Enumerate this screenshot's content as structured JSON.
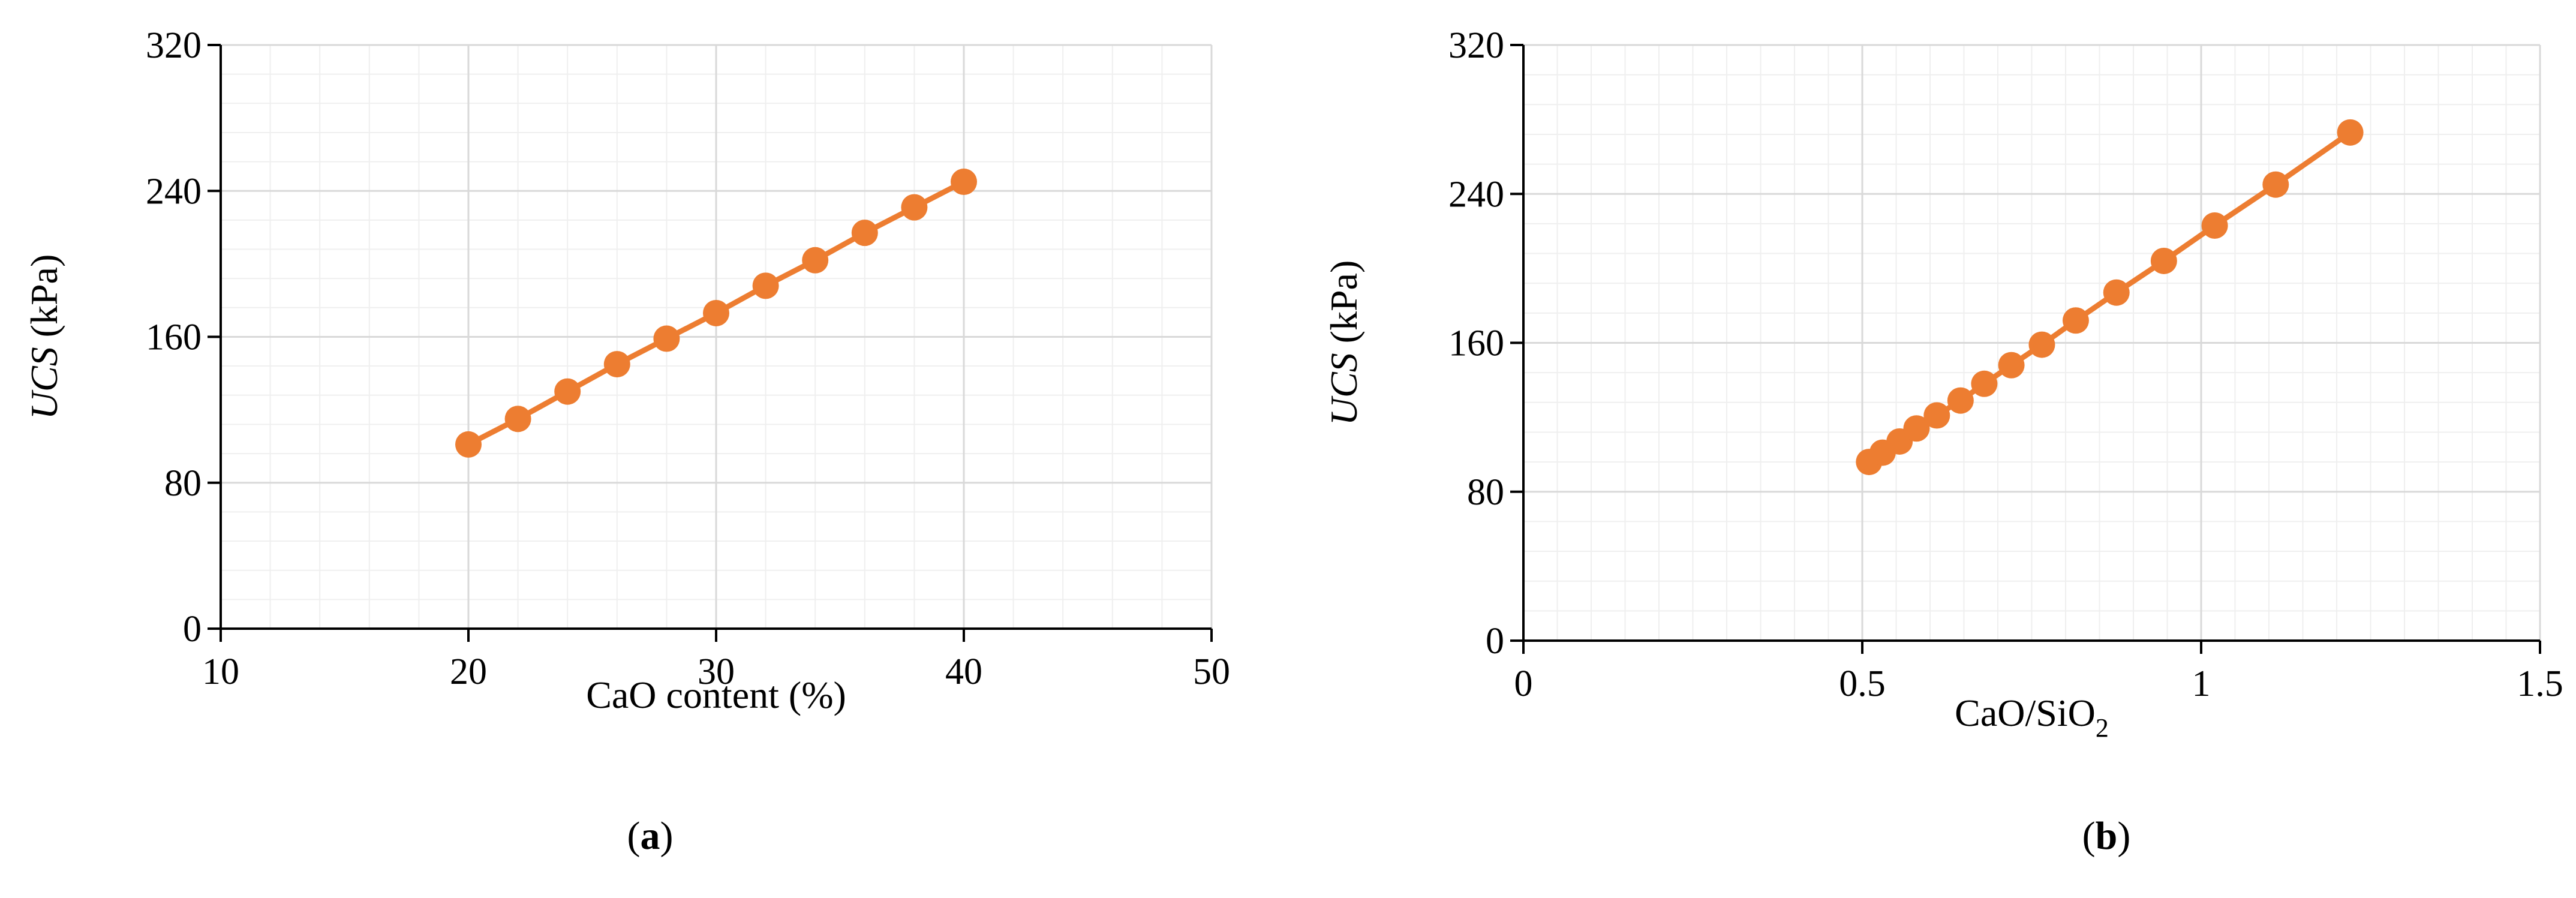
{
  "colors": {
    "series": "#ed7d31",
    "axis": "#000000",
    "grid_major": "#d9d9d9",
    "grid_minor": "#efefef"
  },
  "chart_data": [
    {
      "id": "a",
      "type": "line",
      "panel_label": "(a)",
      "panel_letter": "a",
      "xlabel": "CaO content (%)",
      "ylabel_italic": "UCS",
      "ylabel_rest": " (kPa)",
      "xlim": [
        10,
        50
      ],
      "ylim": [
        0,
        320
      ],
      "xticks": [
        10,
        20,
        30,
        40,
        50
      ],
      "yticks": [
        0,
        80,
        160,
        240,
        320
      ],
      "minor_x_step": 2,
      "minor_y_step": 16,
      "grid": true,
      "markers": true,
      "series": [
        {
          "x": [
            20,
            22,
            24,
            26,
            28,
            30,
            32,
            34,
            36,
            38,
            40
          ],
          "y": [
            101,
            115,
            130,
            145,
            159,
            173,
            188,
            202,
            217,
            231,
            245
          ]
        }
      ]
    },
    {
      "id": "b",
      "type": "line",
      "panel_label": "(b)",
      "panel_letter": "b",
      "xlabel_main": "CaO/SiO",
      "xlabel_sub": "2",
      "ylabel_italic": "UCS",
      "ylabel_rest": " (kPa)",
      "xlim": [
        0,
        1.5
      ],
      "ylim": [
        0,
        320
      ],
      "xticks": [
        0,
        0.5,
        1,
        1.5
      ],
      "yticks": [
        0,
        80,
        160,
        240,
        320
      ],
      "minor_x_step": 0.05,
      "minor_y_step": 16,
      "grid": true,
      "markers": true,
      "series": [
        {
          "x": [
            0.51,
            0.53,
            0.555,
            0.58,
            0.61,
            0.645,
            0.68,
            0.72,
            0.765,
            0.815,
            0.875,
            0.945,
            1.02,
            1.11,
            1.22
          ],
          "y": [
            96,
            101,
            107,
            114,
            121,
            129,
            138,
            148,
            159,
            172,
            187,
            204,
            223,
            245,
            273
          ]
        }
      ]
    }
  ]
}
